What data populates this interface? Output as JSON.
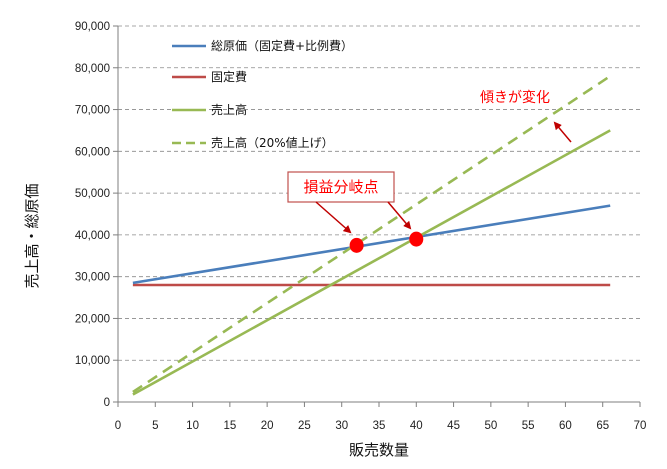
{
  "chart_data": {
    "type": "line",
    "xlabel": "販売数量",
    "ylabel": "売上高・総原価",
    "xlim": [
      0,
      70
    ],
    "ylim": [
      0,
      90000
    ],
    "x_ticks": [
      0,
      5,
      10,
      15,
      20,
      25,
      30,
      35,
      40,
      45,
      50,
      55,
      60,
      65,
      70
    ],
    "y_ticks": [
      0,
      10000,
      20000,
      30000,
      40000,
      50000,
      60000,
      70000,
      80000,
      90000
    ],
    "y_tick_labels": [
      "0",
      "10,000",
      "20,000",
      "30,000",
      "40,000",
      "50,000",
      "60,000",
      "70,000",
      "80,000",
      "90,000"
    ],
    "grid": "horizontal dashed",
    "legend_position": "top-left",
    "series": [
      {
        "name": "総原価（固定費+比例費）",
        "color": "#4a7ebb",
        "dash": false,
        "x": [
          2,
          66
        ],
        "y": [
          28500,
          47000
        ]
      },
      {
        "name": "固定費",
        "color": "#be4b48",
        "dash": false,
        "x": [
          2,
          66
        ],
        "y": [
          28000,
          28000
        ]
      },
      {
        "name": "売上高",
        "color": "#98b954",
        "dash": false,
        "x": [
          2,
          66
        ],
        "y": [
          1800,
          65000
        ]
      },
      {
        "name": "売上高（20%値上げ）",
        "color": "#98b954",
        "dash": true,
        "x": [
          2,
          66
        ],
        "y": [
          2400,
          78000
        ]
      }
    ],
    "points": [
      {
        "x": 32,
        "y": 37500,
        "color": "#ff0000"
      },
      {
        "x": 40,
        "y": 39000,
        "color": "#ff0000"
      }
    ],
    "annotations": [
      {
        "text": "損益分岐点",
        "color": "#ff0000",
        "boxed": true
      },
      {
        "text": "傾きが変化",
        "color": "#ff0000",
        "boxed": false
      }
    ]
  }
}
